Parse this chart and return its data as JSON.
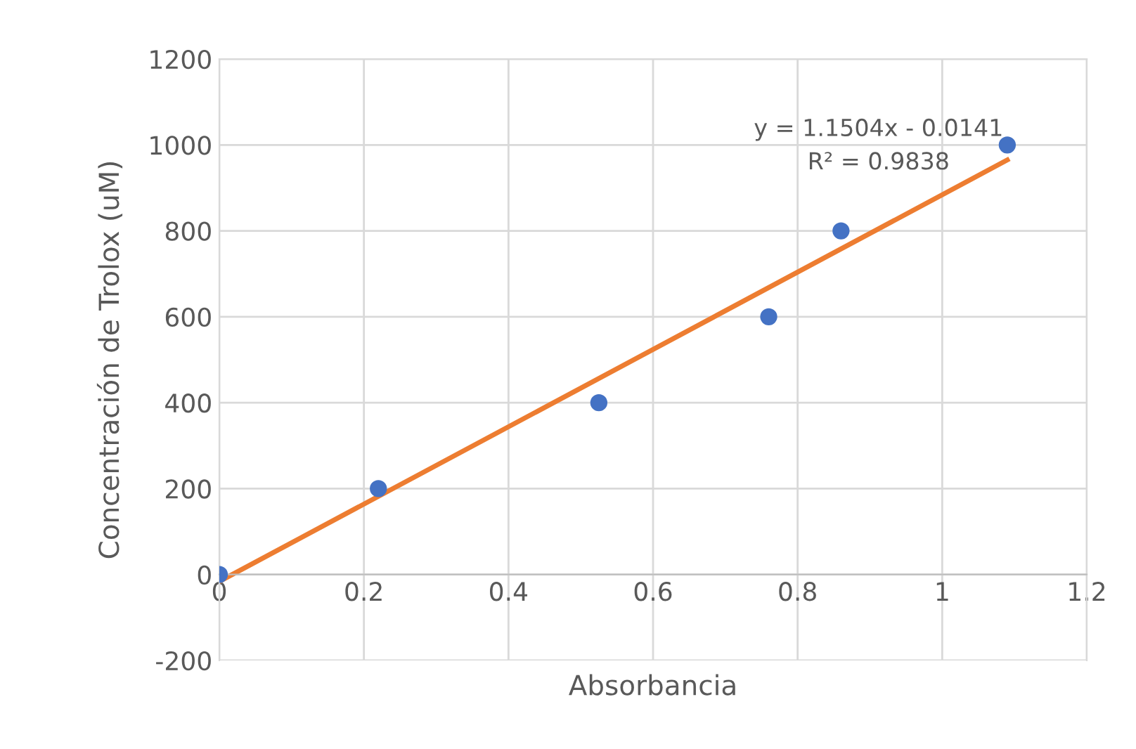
{
  "chart_data": {
    "type": "scatter",
    "xlabel": "Absorbancia",
    "ylabel": "Concentración de Trolox (uM)",
    "xlim": [
      0,
      1.2
    ],
    "ylim": [
      -200,
      1200
    ],
    "xticks": [
      0,
      0.2,
      0.4,
      0.6,
      0.8,
      1,
      1.2
    ],
    "yticks": [
      -200,
      0,
      200,
      400,
      600,
      800,
      1000,
      1200
    ],
    "grid": true,
    "series": [
      {
        "marker": "circle",
        "color": "#4472c4",
        "x": [
          0,
          0.22,
          0.525,
          0.76,
          0.86,
          1.09
        ],
        "values": [
          0,
          200,
          400,
          600,
          800,
          1000
        ]
      },
      {
        "type": "line",
        "color": "#ed7d31",
        "x": [
          0,
          1.09
        ],
        "values": [
          -16,
          965
        ]
      }
    ],
    "annotations": [
      "y = 1.1504x - 0.0141\nR² = 0.9838"
    ]
  }
}
